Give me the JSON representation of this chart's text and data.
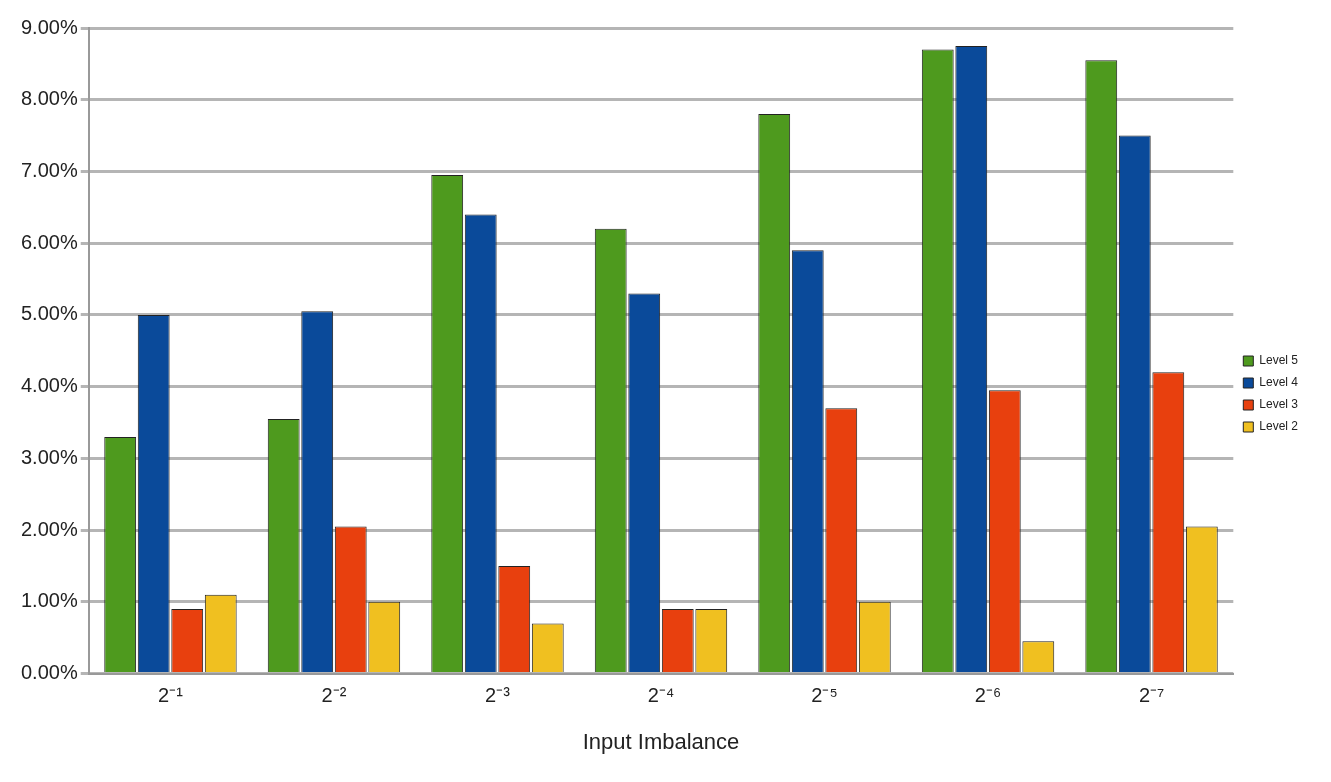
{
  "chart_data": {
    "type": "bar",
    "xlabel": "Input Imbalance",
    "categories": [
      "2⁻¹",
      "2⁻²",
      "2⁻³",
      "2⁻⁴",
      "2⁻⁵",
      "2⁻⁶",
      "2⁻⁷"
    ],
    "series": [
      {
        "name": "Level 5",
        "color": "#4e9a1e",
        "values": [
          3.3,
          3.55,
          6.95,
          6.2,
          7.8,
          8.7,
          8.55
        ]
      },
      {
        "name": "Level 4",
        "color": "#0a4a9a",
        "values": [
          5.0,
          5.05,
          6.4,
          5.3,
          5.9,
          8.75,
          7.5
        ]
      },
      {
        "name": "Level 3",
        "color": "#e8400e",
        "values": [
          0.9,
          2.05,
          1.5,
          0.9,
          3.7,
          3.95,
          4.2
        ]
      },
      {
        "name": "Level 2",
        "color": "#f0c020",
        "values": [
          1.1,
          1.0,
          0.7,
          0.9,
          1.0,
          0.45,
          2.05
        ]
      }
    ],
    "ylim": [
      0,
      9
    ],
    "yticks": [
      {
        "value": 0,
        "label": "0.00%"
      },
      {
        "value": 1,
        "label": "1.00%"
      },
      {
        "value": 2,
        "label": "2.00%"
      },
      {
        "value": 3,
        "label": "3.00%"
      },
      {
        "value": 4,
        "label": "4.00%"
      },
      {
        "value": 5,
        "label": "5.00%"
      },
      {
        "value": 6,
        "label": "6.00%"
      },
      {
        "value": 7,
        "label": "7.00%"
      },
      {
        "value": 8,
        "label": "8.00%"
      },
      {
        "value": 9,
        "label": "9.00%"
      }
    ],
    "grid": "y",
    "legend": "right"
  }
}
